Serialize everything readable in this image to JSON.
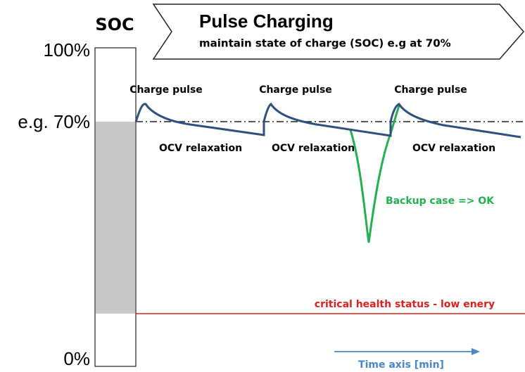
{
  "soc_label": "SOC",
  "header": {
    "title": "Pulse Charging",
    "subtitle": "maintain state of charge (SOC) e.g at 70%"
  },
  "levels": {
    "top": "100%",
    "target": "e.g. 70%",
    "bottom": "0%"
  },
  "pulses": [
    {
      "charge": "Charge pulse",
      "relaxation": "OCV relaxation"
    },
    {
      "charge": "Charge pulse",
      "relaxation": "OCV relaxation"
    },
    {
      "charge": "Charge pulse",
      "relaxation": "OCV relaxation"
    }
  ],
  "backup_label": "Backup case => OK",
  "critical_label": "critical health status - low enery",
  "time_axis": "Time axis [min]"
}
